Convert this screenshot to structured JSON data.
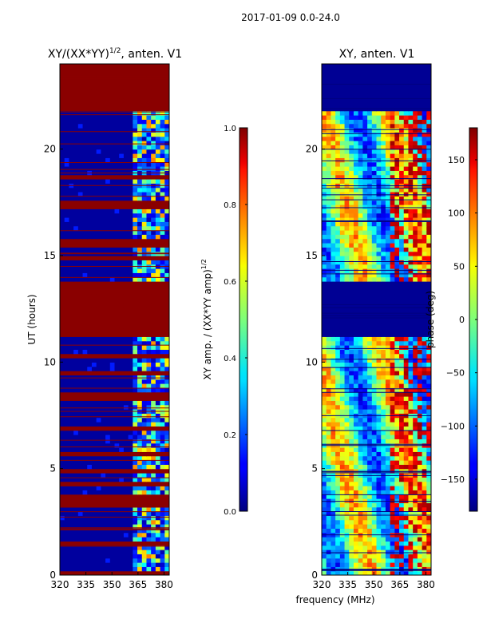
{
  "figure": {
    "suptitle": "2017-01-09 0.0-24.0",
    "shared_xlabel": "frequency (MHz)"
  },
  "chart_data": [
    {
      "type": "heatmap",
      "title_main": "XY/(XX*YY)",
      "title_exp": "1/2",
      "title_tail": ", anten. V1",
      "xlabel": "",
      "ylabel": "UT (hours)",
      "xlim": [
        320,
        383
      ],
      "ylim": [
        0,
        24
      ],
      "xticks": [
        320,
        335,
        350,
        365,
        380
      ],
      "yticks": [
        0,
        5,
        10,
        15,
        20
      ],
      "colormap": "jet",
      "saturated_bands_hours": [
        [
          0,
          0.2
        ],
        [
          0.8,
          0.9
        ],
        [
          1.5,
          1.7
        ],
        [
          2.4,
          2.5
        ],
        [
          3.3,
          3.8
        ],
        [
          4.3,
          4.4
        ],
        [
          4.9,
          5.0
        ],
        [
          5.6,
          5.8
        ],
        [
          6.2,
          6.3
        ],
        [
          6.9,
          7.0
        ],
        [
          7.6,
          7.7
        ],
        [
          8.2,
          8.6
        ],
        [
          9.5,
          9.6
        ],
        [
          10.3,
          10.4
        ],
        [
          11.2,
          13.8
        ],
        [
          14.8,
          15.1
        ],
        [
          15.5,
          15.9
        ],
        [
          16.6,
          16.7
        ],
        [
          17.3,
          17.7
        ],
        [
          18.7,
          18.8
        ],
        [
          19.6,
          19.7
        ],
        [
          20.6,
          20.7
        ],
        [
          21.8,
          24.0
        ]
      ],
      "colorbar": {
        "label_main": "XY amp. / (XX*YY amp)",
        "label_exp": "1/2",
        "range": [
          0.0,
          1.0
        ],
        "ticks": [
          "0.0",
          "0.2",
          "0.4",
          "0.6",
          "0.8",
          "1.0"
        ]
      }
    },
    {
      "type": "heatmap",
      "title_main": "XY, anten. V1",
      "xlabel": "frequency (MHz)",
      "ylabel": "",
      "xlim": [
        320,
        383
      ],
      "ylim": [
        0,
        24
      ],
      "xticks": [
        320,
        335,
        350,
        365,
        380
      ],
      "yticks": [
        0,
        5,
        10,
        15,
        20
      ],
      "colormap": "jet",
      "masked_bands_hours": [
        [
          11.2,
          13.8
        ],
        [
          21.8,
          24.0
        ]
      ],
      "colorbar": {
        "label": "phase (deg)",
        "range": [
          -180,
          180
        ],
        "ticks": [
          "−150",
          "−100",
          "−50",
          "0",
          "50",
          "100",
          "150"
        ],
        "tick_values": [
          -150,
          -100,
          -50,
          0,
          50,
          100,
          150
        ]
      }
    }
  ]
}
